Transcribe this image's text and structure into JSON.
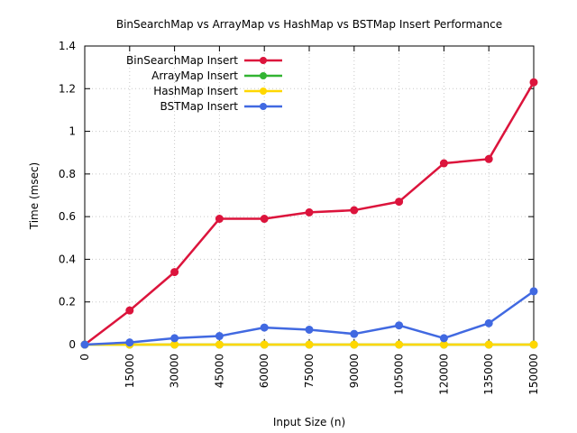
{
  "chart_data": {
    "type": "line",
    "title": "BinSearchMap vs ArrayMap vs HashMap vs BSTMap Insert Performance",
    "xlabel": "Input Size (n)",
    "ylabel": "Time (msec)",
    "x": [
      0,
      15000,
      30000,
      45000,
      60000,
      75000,
      90000,
      105000,
      120000,
      135000,
      150000
    ],
    "x_ticks": [
      "0",
      "15000",
      "30000",
      "45000",
      "60000",
      "75000",
      "90000",
      "105000",
      "120000",
      "135000",
      "150000"
    ],
    "y_ticks": [
      "0",
      "0.2",
      "0.4",
      "0.6",
      "0.8",
      "1",
      "1.2",
      "1.4"
    ],
    "xlim": [
      0,
      150000
    ],
    "ylim": [
      0,
      1.4
    ],
    "grid": true,
    "legend_position": "top-left",
    "series": [
      {
        "name": "BinSearchMap Insert",
        "color": "#dc143c",
        "values": [
          0,
          0.16,
          0.34,
          0.59,
          0.59,
          0.62,
          0.63,
          0.67,
          0.85,
          0.87,
          1.23
        ]
      },
      {
        "name": "ArrayMap Insert",
        "color": "#32b432",
        "values": [
          0,
          0,
          0,
          0,
          0,
          0,
          0,
          0,
          0,
          0,
          0
        ]
      },
      {
        "name": "HashMap Insert",
        "color": "#ffd700",
        "values": [
          0,
          0,
          0,
          0,
          0,
          0,
          0,
          0,
          0,
          0,
          0
        ]
      },
      {
        "name": "BSTMap Insert",
        "color": "#4169e1",
        "values": [
          0,
          0.01,
          0.03,
          0.04,
          0.08,
          0.07,
          0.05,
          0.09,
          0.03,
          0.1,
          0.25
        ]
      }
    ]
  }
}
